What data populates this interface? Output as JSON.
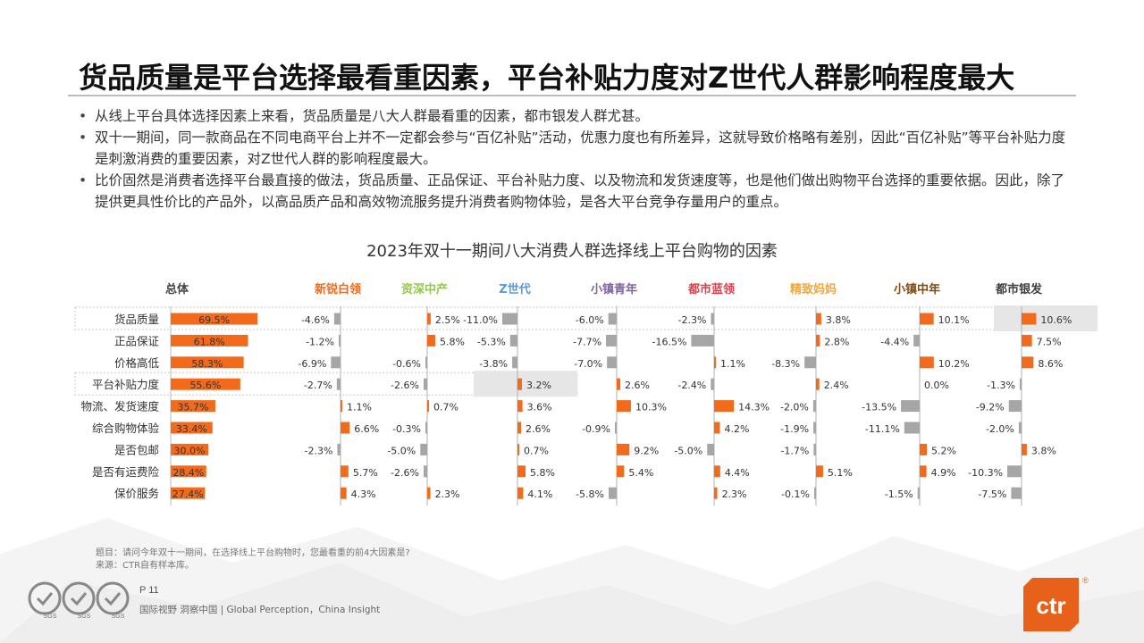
{
  "title": "货品质量是平台选择最看重因素，平台补贴力度对Z世代人群影响程度最大",
  "bullets": [
    "从线上平台具体选择因素上来看，货品质量是八大人群最看重的因素，都市银发人群尤甚。",
    "双十一期间，同一款商品在不同电商平台上并不一定都会参与“百亿补贴”活动，优惠力度也有所差异，这就导致价格略有差别，因此“百亿补贴”等平台补贴力度是刺激消费的重要因素，对Z世代人群的影响程度最大。",
    "比价固然是消费者选择平台最直接的做法，货品质量、正品保证、平台补贴力度、以及物流和发货速度等，也是他们做出购物平台选择的重要依据。因此，除了提供更具性价比的产品外，以高品质产品和高效物流服务提升消费者购物体验，是各大平台竞争存量用户的重点。"
  ],
  "chart_data": {
    "type": "bar",
    "title": "2023年双十一期间八大消费人群选择线上平台购物的因素",
    "categories": [
      "货品质量",
      "正品保证",
      "价格高低",
      "平台补贴力度",
      "物流、发货速度",
      "综合购物体验",
      "是否包邮",
      "是否有运费险",
      "保价服务"
    ],
    "total": {
      "name": "总体",
      "values": [
        69.5,
        61.8,
        58.3,
        55.6,
        35.7,
        33.4,
        30.0,
        28.4,
        27.4
      ],
      "labels": [
        "69.5%",
        "61.8%",
        "58.3%",
        "55.6%",
        "35.7%",
        "33.4%",
        "30.0%",
        "28.4%",
        "27.4%"
      ],
      "color": "#f26b1d"
    },
    "series": [
      {
        "name": "新锐白领",
        "color": "#f26b1d",
        "values": [
          -4.6,
          -1.2,
          -6.9,
          -2.7,
          1.1,
          6.6,
          -2.3,
          5.7,
          4.3
        ],
        "labels": [
          "-4.6%",
          "-1.2%",
          "-6.9%",
          "-2.7%",
          "1.1%",
          "6.6%",
          "-2.3%",
          "5.7%",
          "4.3%"
        ]
      },
      {
        "name": "资深中产",
        "color": "#92c94a",
        "values": [
          2.5,
          5.8,
          -0.6,
          -2.6,
          0.7,
          -0.3,
          -5.0,
          -2.6,
          2.3
        ],
        "labels": [
          "2.5%",
          "5.8%",
          "-0.6%",
          "-2.6%",
          "0.7%",
          "-0.3%",
          "-5.0%",
          "-2.6%",
          "2.3%"
        ]
      },
      {
        "name": "Z世代",
        "color": "#5b9bd5",
        "values": [
          -11.0,
          -5.3,
          -3.8,
          3.2,
          3.6,
          2.6,
          0.7,
          5.8,
          4.1
        ],
        "labels": [
          "-11.0%",
          "-5.3%",
          "-3.8%",
          "3.2%",
          "3.6%",
          "2.6%",
          "0.7%",
          "5.8%",
          "4.1%"
        ]
      },
      {
        "name": "小镇青年",
        "color": "#8064a2",
        "values": [
          -6.0,
          -7.7,
          -7.0,
          2.6,
          10.3,
          -0.9,
          9.2,
          5.4,
          -5.8
        ],
        "labels": [
          "-6.0%",
          "-7.7%",
          "-7.0%",
          "2.6%",
          "10.3%",
          "-0.9%",
          "9.2%",
          "5.4%",
          "-5.8%"
        ]
      },
      {
        "name": "都市蓝领",
        "color": "#e0404a",
        "values": [
          -2.3,
          -16.5,
          1.1,
          -2.4,
          14.3,
          4.2,
          -5.0,
          4.4,
          2.3
        ],
        "labels": [
          "-2.3%",
          "-16.5%",
          "1.1%",
          "-2.4%",
          "14.3%",
          "4.2%",
          "-5.0%",
          "4.4%",
          "2.3%"
        ]
      },
      {
        "name": "精致妈妈",
        "color": "#f0a63c",
        "values": [
          3.8,
          2.8,
          -8.3,
          2.4,
          -2.0,
          -1.9,
          -1.7,
          5.1,
          -0.1
        ],
        "labels": [
          "3.8%",
          "2.8%",
          "-8.3%",
          "2.4%",
          "-2.0%",
          "-1.9%",
          "-1.7%",
          "5.1%",
          "-0.1%"
        ]
      },
      {
        "name": "小镇中年",
        "color": "#7f4b12",
        "values": [
          10.1,
          -4.4,
          10.2,
          0.0,
          -13.5,
          -11.1,
          5.2,
          4.9,
          -1.5
        ],
        "labels": [
          "10.1%",
          "-4.4%",
          "10.2%",
          "0.0%",
          "-13.5%",
          "-11.1%",
          "5.2%",
          "4.9%",
          "-1.5%"
        ]
      },
      {
        "name": "都市银发",
        "color": "#404040",
        "values": [
          10.6,
          7.5,
          8.6,
          -1.3,
          -9.2,
          -2.0,
          3.8,
          -10.3,
          -7.5
        ],
        "labels": [
          "10.6%",
          "7.5%",
          "8.6%",
          "-1.3%",
          "-9.2%",
          "-2.0%",
          "3.8%",
          "-10.3%",
          "-7.5%"
        ]
      }
    ],
    "positive_color": "#f26b1d",
    "negative_color": "#a6a6a6"
  },
  "footnote": {
    "question": "题目：请问今年双十一期间，在选择线上平台购物时，您最看重的前4大因素是?",
    "source": "来源：CTR自有样本库。"
  },
  "page": "P 11",
  "slogan": "国际视野  洞察中国 |  Global Perception，China Insight",
  "seal_labels": [
    "SGS",
    "SGS",
    "SGS"
  ],
  "logo": {
    "text": "ctr",
    "reg": "®",
    "color": "#e8611a"
  }
}
